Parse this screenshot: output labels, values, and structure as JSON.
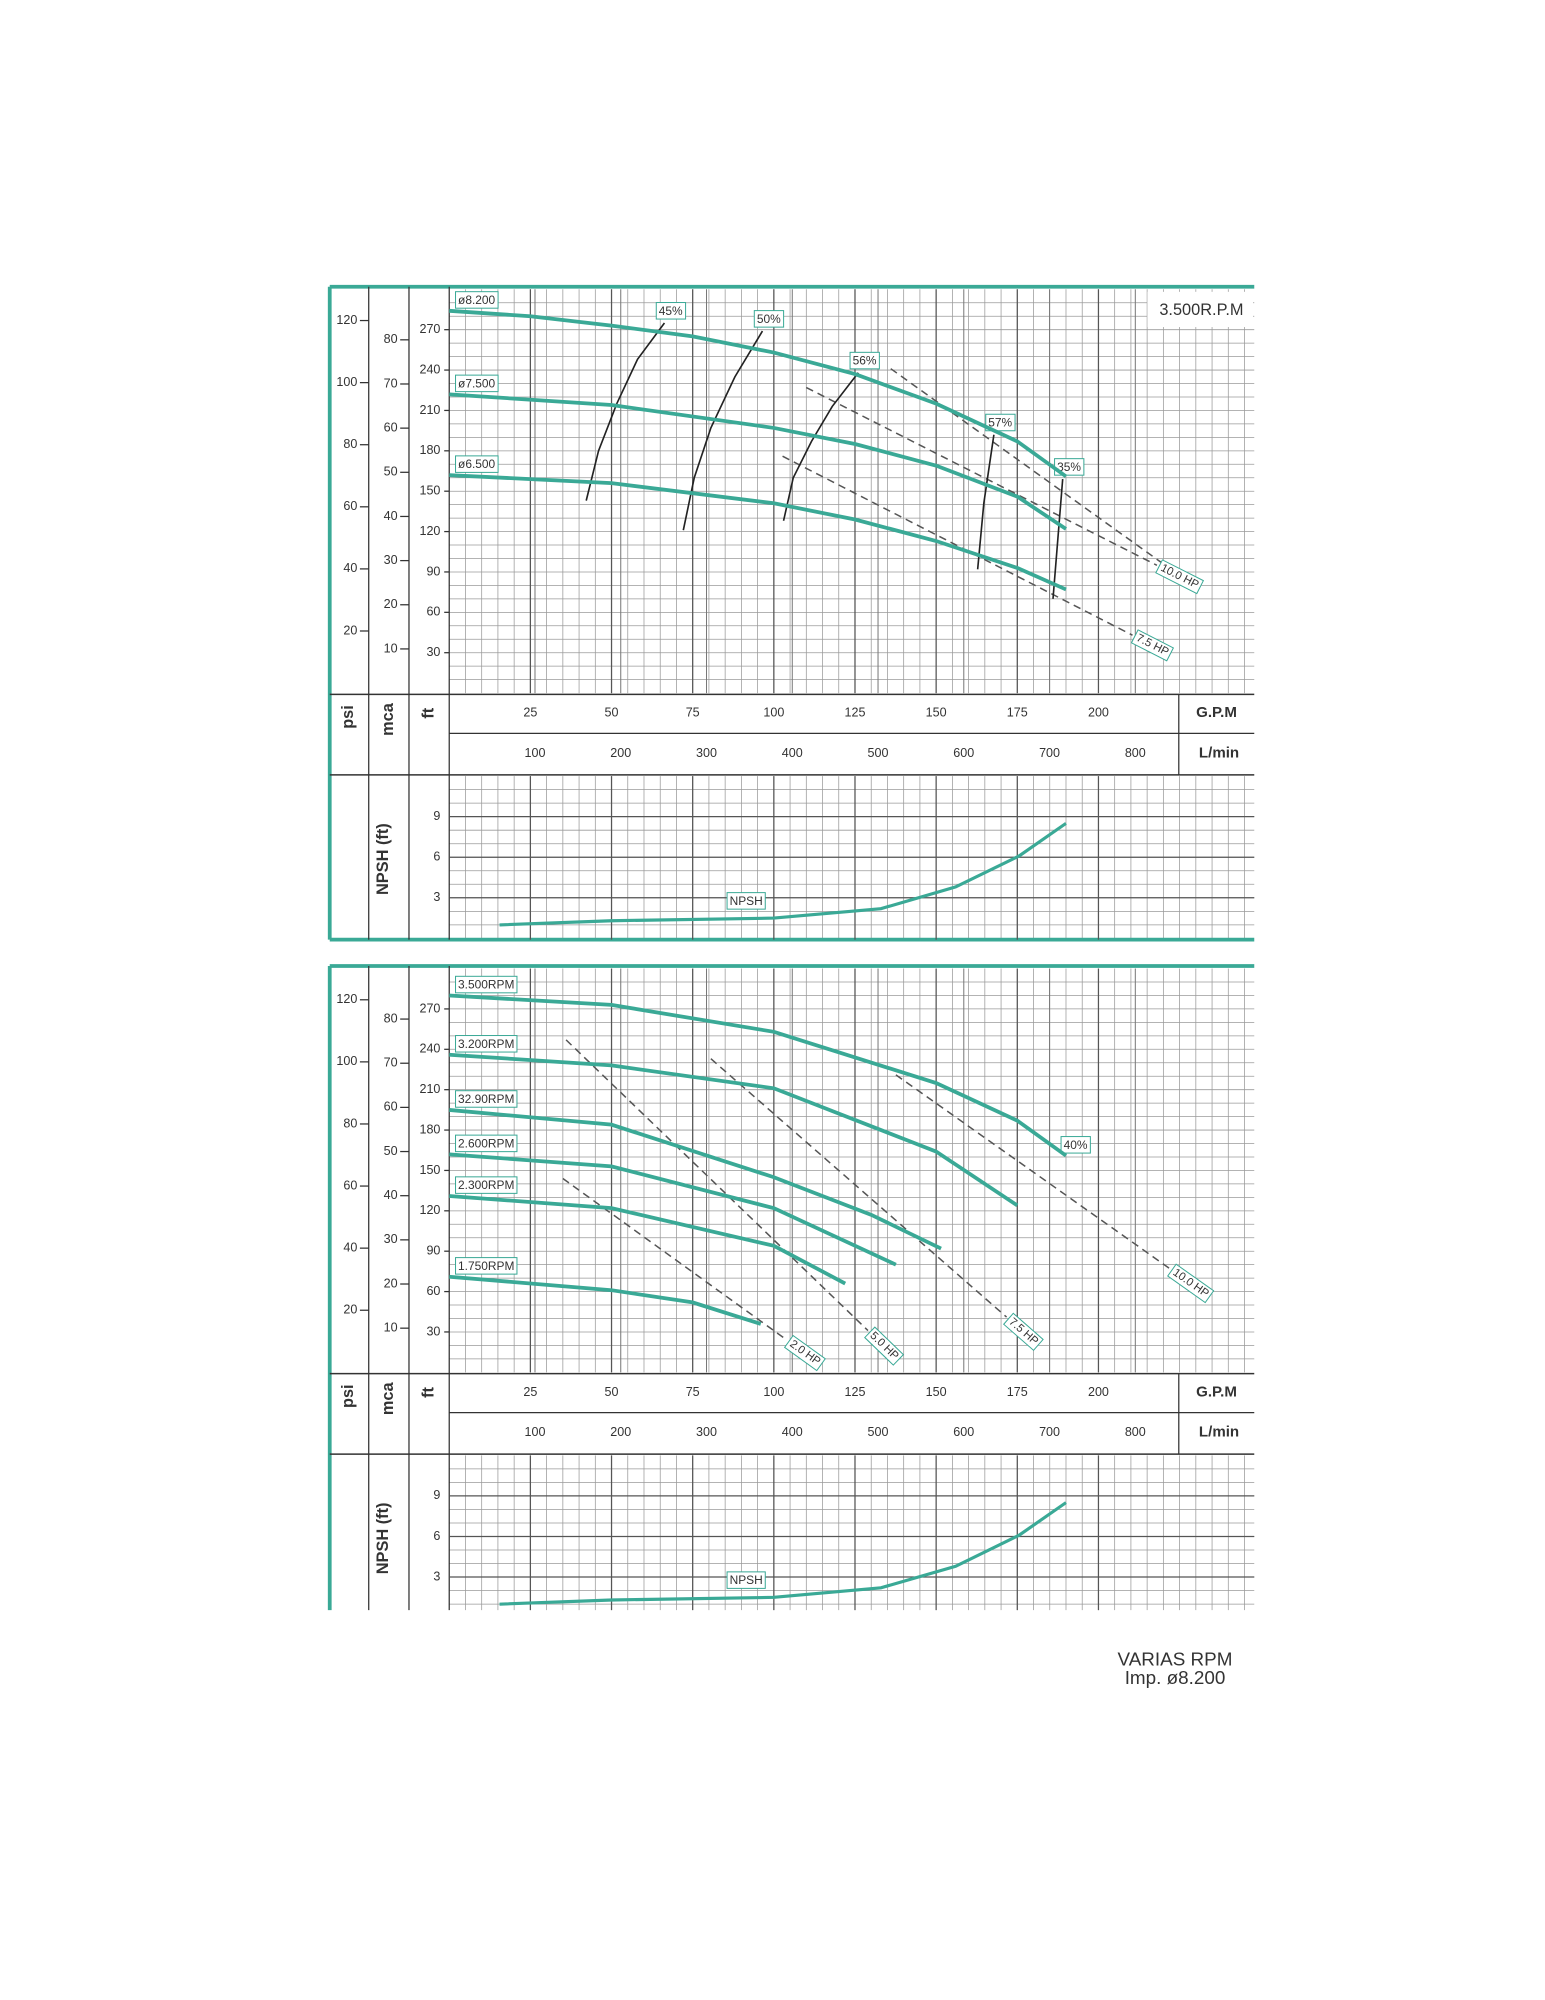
{
  "chart_data": [
    {
      "type": "line",
      "title": "3.500R.P.M",
      "x_label": "G.P.M",
      "x2_label": "L/min",
      "y_label": "ft",
      "y2_label": "mca",
      "y3_label": "psi",
      "xlim": [
        0,
        248
      ],
      "xticks": [
        25,
        50,
        75,
        100,
        125,
        150,
        175,
        200
      ],
      "x2lim": [
        0,
        938.7
      ],
      "x2ticks": [
        100,
        200,
        300,
        400,
        500,
        600,
        700,
        800
      ],
      "ylim": [
        0,
        300
      ],
      "yticks": [
        30,
        60,
        90,
        120,
        150,
        180,
        210,
        240,
        270
      ],
      "y2lim": [
        0,
        91.44
      ],
      "y2ticks": [
        10,
        20,
        30,
        40,
        50,
        60,
        70,
        80
      ],
      "y3lim": [
        0,
        130.06
      ],
      "y3ticks": [
        20,
        40,
        60,
        80,
        100,
        120
      ],
      "color": "#3aa996",
      "grid": true,
      "series": [
        {
          "name": "ø8.200",
          "x": [
            0,
            25,
            50,
            75,
            100,
            125,
            150,
            175,
            190
          ],
          "values": [
            284,
            280,
            273,
            265,
            253,
            237,
            215,
            187,
            161
          ]
        },
        {
          "name": "ø7.500",
          "x": [
            0,
            50,
            100,
            125,
            150,
            175,
            190
          ],
          "values": [
            222,
            214,
            197,
            185,
            169,
            146,
            122
          ]
        },
        {
          "name": "ø6.500",
          "x": [
            0,
            50,
            100,
            125,
            150,
            175,
            190
          ],
          "values": [
            162,
            156,
            141,
            129,
            113,
            93,
            77
          ]
        }
      ],
      "efficiency": [
        {
          "label": "45%",
          "x": [
            42.2,
            46,
            51.6,
            58,
            66.3
          ],
          "values": [
            143,
            180,
            215,
            248,
            275
          ]
        },
        {
          "label": "50%",
          "x": [
            72.1,
            75.5,
            80.6,
            88,
            96.5
          ],
          "values": [
            121,
            160,
            197,
            235,
            269
          ]
        },
        {
          "label": "56%",
          "x": [
            103,
            106,
            111.6,
            118,
            126
          ],
          "values": [
            128,
            160,
            187,
            213,
            238
          ]
        },
        {
          "label": "57%",
          "x": [
            162.8,
            164.7,
            167.8
          ],
          "values": [
            92,
            141,
            192
          ]
        },
        {
          "label": "35%",
          "x": [
            186,
            187.5,
            189
          ],
          "values": [
            70,
            115,
            159
          ]
        }
      ],
      "power": [
        {
          "x": [
            136,
            220
          ],
          "values": [
            241,
            96
          ]
        },
        {
          "label": "10.0 HP",
          "x": [
            110,
            218
          ],
          "values": [
            227,
            95
          ]
        },
        {
          "label": "7.5 HP",
          "x": [
            102.7,
            210.5
          ],
          "values": [
            176,
            43
          ]
        }
      ],
      "npsh": {
        "y_label": "NPSH (ft)",
        "name": "NPSH",
        "ylim": [
          0,
          12
        ],
        "yticks": [
          3,
          6,
          9
        ],
        "x": [
          15.5,
          50,
          100,
          133,
          156,
          175.6,
          190
        ],
        "values": [
          1.0,
          1.3,
          1.5,
          2.2,
          3.8,
          6.1,
          8.5
        ]
      }
    },
    {
      "type": "line",
      "title": "VARIAS RPM",
      "subtitle": "Imp. ø8.200",
      "x_label": "G.P.M",
      "x2_label": "L/min",
      "y_label": "ft",
      "y2_label": "mca",
      "y3_label": "psi",
      "xlim": [
        0,
        248
      ],
      "xticks": [
        25,
        50,
        75,
        100,
        125,
        150,
        175,
        200
      ],
      "x2lim": [
        0,
        938.7
      ],
      "x2ticks": [
        100,
        200,
        300,
        400,
        500,
        600,
        700,
        800
      ],
      "ylim": [
        0,
        300
      ],
      "yticks": [
        30,
        60,
        90,
        120,
        150,
        180,
        210,
        240,
        270
      ],
      "y2lim": [
        0,
        91.44
      ],
      "y2ticks": [
        10,
        20,
        30,
        40,
        50,
        60,
        70,
        80
      ],
      "y3lim": [
        0,
        130.06
      ],
      "y3ticks": [
        20,
        40,
        60,
        80,
        100,
        120
      ],
      "color": "#3aa996",
      "grid": true,
      "series": [
        {
          "name": "3.500RPM",
          "x": [
            0,
            50,
            100,
            150,
            175,
            190
          ],
          "values": [
            280,
            273,
            253,
            215,
            187,
            161
          ]
        },
        {
          "name": "3.200RPM",
          "x": [
            0,
            50,
            100,
            150,
            175
          ],
          "values": [
            236,
            228,
            211,
            164,
            124
          ]
        },
        {
          "name": "32.90RPM",
          "x": [
            0,
            50,
            100,
            130,
            151.5
          ],
          "values": [
            195,
            184,
            145,
            117,
            92
          ]
        },
        {
          "name": "2.600RPM",
          "x": [
            0,
            50,
            100,
            137.6
          ],
          "values": [
            162,
            153,
            122,
            80
          ]
        },
        {
          "name": "2.300RPM",
          "x": [
            0,
            50,
            100,
            122
          ],
          "values": [
            131,
            122,
            94,
            66
          ]
        },
        {
          "name": "1.750RPM",
          "x": [
            0,
            50,
            75,
            96
          ],
          "values": [
            71,
            61,
            52,
            36
          ]
        }
      ],
      "efficiency": [
        {
          "label": "40%",
          "x": [
            191
          ],
          "values": [
            160
          ]
        }
      ],
      "power": [
        {
          "label": "10.0 HP",
          "x": [
            137.6,
            222
          ],
          "values": [
            221,
            77
          ]
        },
        {
          "label": "7.5 HP",
          "x": [
            80.6,
            171.7
          ],
          "values": [
            233,
            41
          ]
        },
        {
          "label": "5.0 HP",
          "x": [
            36,
            129
          ],
          "values": [
            247,
            31
          ]
        },
        {
          "label": "2.0 HP",
          "x": [
            35,
            104
          ],
          "values": [
            144,
            24
          ]
        }
      ],
      "npsh": {
        "y_label": "NPSH (ft)",
        "name": "NPSH",
        "ylim": [
          0,
          12
        ],
        "yticks": [
          3,
          6,
          9
        ],
        "x": [
          15.5,
          50,
          100,
          133,
          156,
          175.6,
          190
        ],
        "values": [
          1.0,
          1.3,
          1.5,
          2.2,
          3.8,
          6.1,
          8.5
        ]
      }
    }
  ]
}
